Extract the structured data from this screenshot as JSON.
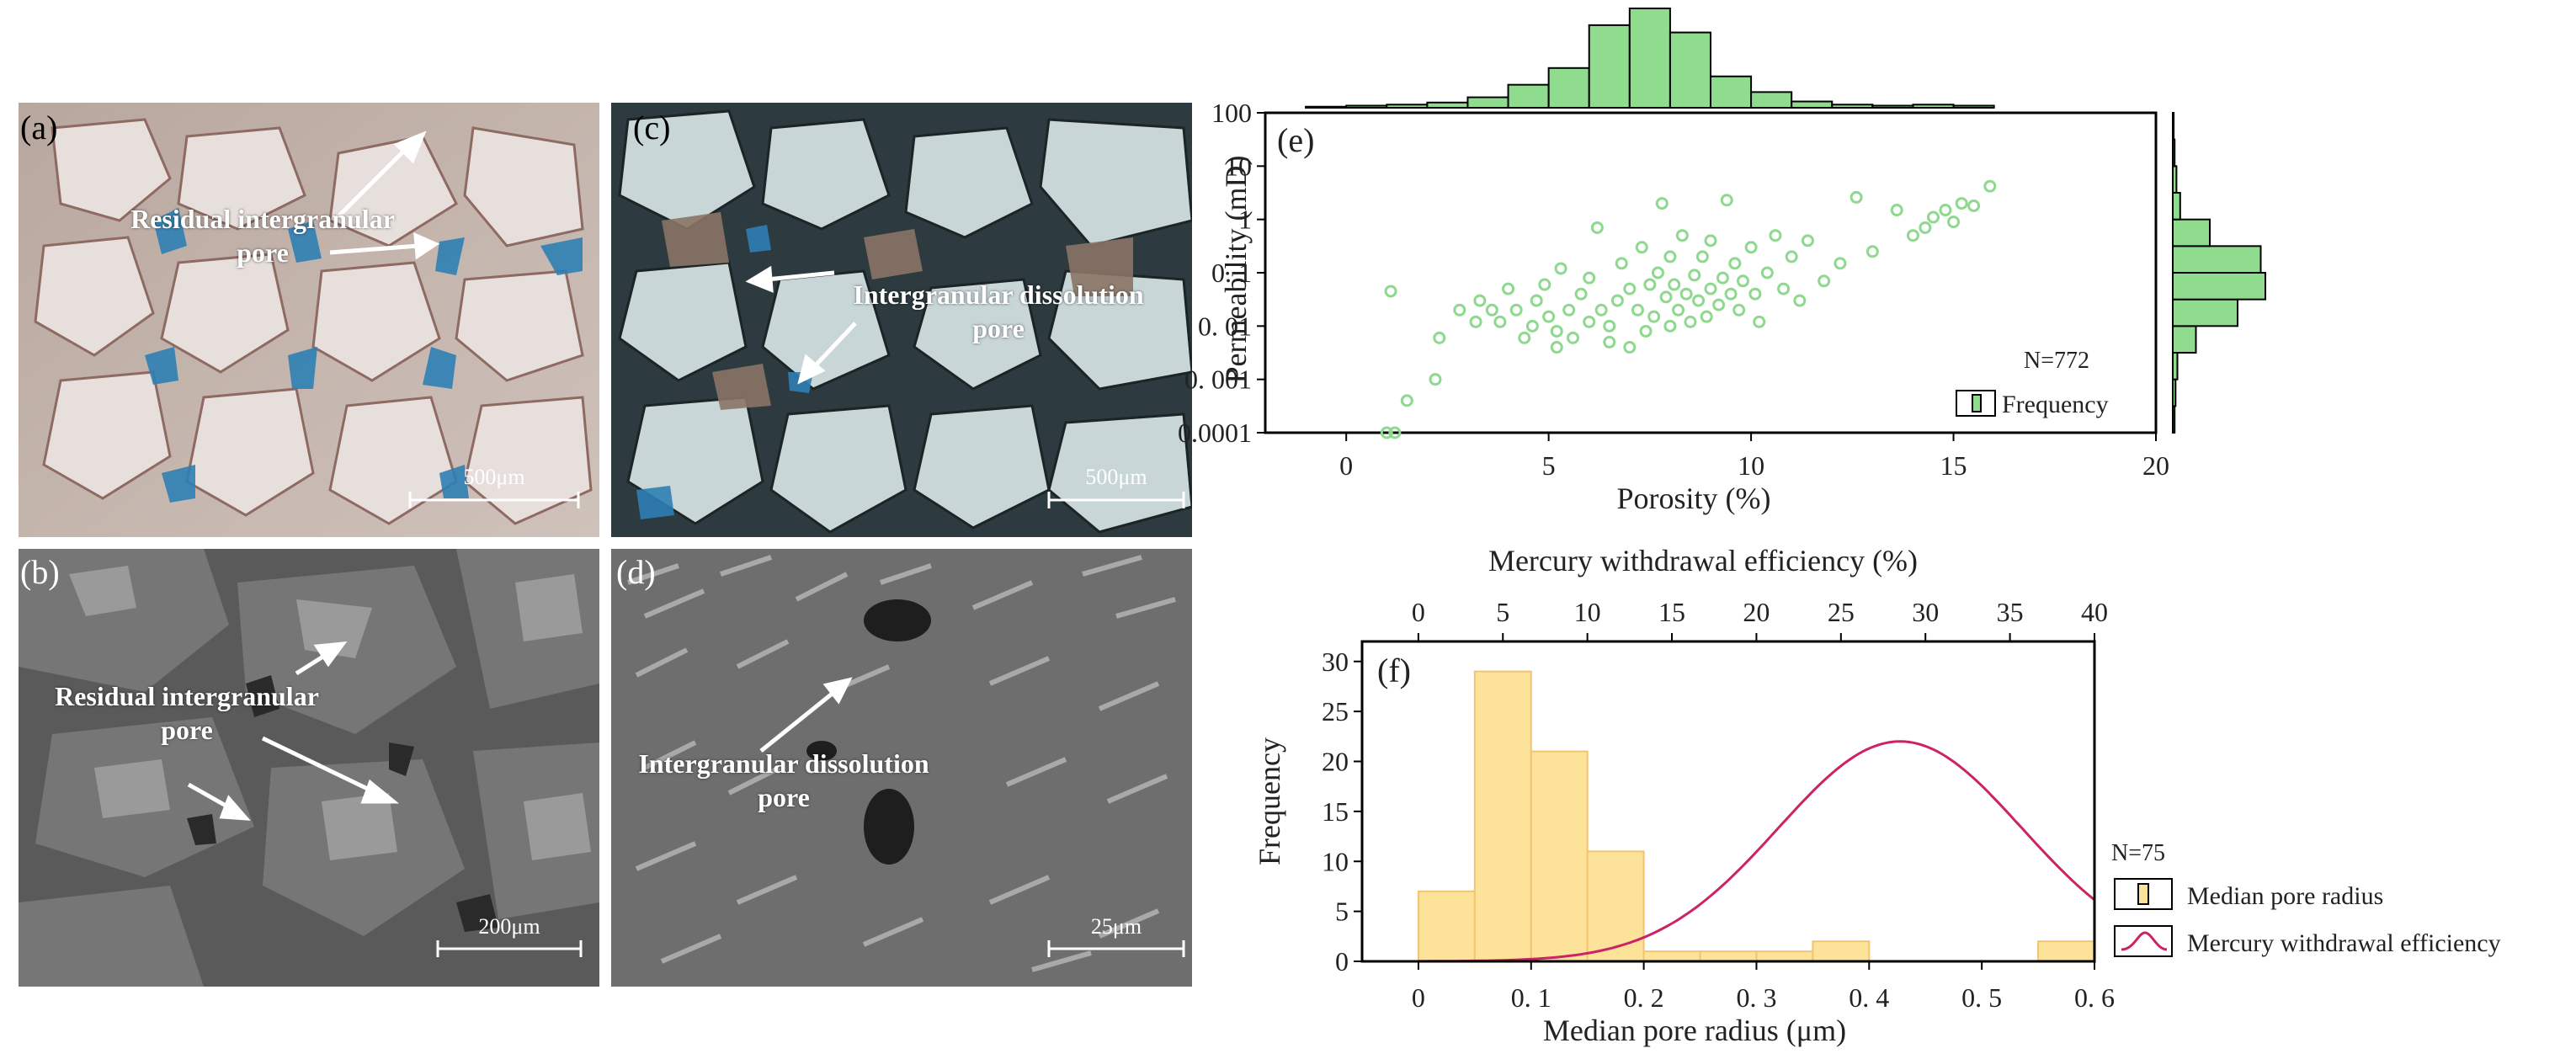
{
  "panels": {
    "a": {
      "label": "(a)",
      "annotation_lines": [
        "Residual intergranular",
        "pore"
      ],
      "scale": "500μm"
    },
    "b": {
      "label": "(b)",
      "annotation_lines": [
        "Residual intergranular",
        "pore"
      ],
      "scale": "200μm"
    },
    "c": {
      "label": "(c)",
      "annotation_lines": [
        "Intergranular dissolution",
        "pore"
      ],
      "scale": "500μm"
    },
    "d": {
      "label": "(d)",
      "annotation_lines": [
        "Intergranular dissolution",
        "pore"
      ],
      "scale": "25μm"
    }
  },
  "colors": {
    "scatter_green": "#8fd88f",
    "hist_green": "#8fdc8f",
    "hist_yellow": "#fde39a",
    "hist_yellow_edge": "#f2c472",
    "curve": "#cc2266",
    "blue_resin": "#2e7fb4"
  },
  "chart_data": [
    {
      "panel": "(e)",
      "type": "scatter",
      "xlabel": "Porosity (%)",
      "ylabel": "Permeability (mD)",
      "xlim": [
        -2,
        20
      ],
      "ylim": [
        0.0001,
        100
      ],
      "y_scale": "log",
      "x_ticks": [
        "0",
        "5",
        "10",
        "15",
        "20"
      ],
      "y_ticks": [
        "0.0001",
        "0. 001",
        "0. 01",
        "0. 1",
        "1",
        "10",
        "100"
      ],
      "n_label": "N=772",
      "legend": {
        "label": "Frequency",
        "position": "bottom-right"
      },
      "points": [
        [
          1.0,
          0.0001
        ],
        [
          1.2,
          0.0001
        ],
        [
          1.1,
          0.045
        ],
        [
          1.5,
          0.0004
        ],
        [
          2.2,
          0.001
        ],
        [
          2.3,
          0.006
        ],
        [
          2.8,
          0.02
        ],
        [
          3.2,
          0.012
        ],
        [
          3.3,
          0.03
        ],
        [
          3.6,
          0.02
        ],
        [
          3.8,
          0.012
        ],
        [
          4.0,
          0.05
        ],
        [
          4.2,
          0.02
        ],
        [
          4.4,
          0.006
        ],
        [
          4.6,
          0.01
        ],
        [
          4.7,
          0.03
        ],
        [
          4.9,
          0.06
        ],
        [
          5.0,
          0.015
        ],
        [
          5.2,
          0.004
        ],
        [
          5.2,
          0.008
        ],
        [
          5.3,
          0.12
        ],
        [
          5.5,
          0.02
        ],
        [
          5.6,
          0.006
        ],
        [
          5.8,
          0.04
        ],
        [
          6.0,
          0.012
        ],
        [
          6.0,
          0.08
        ],
        [
          6.2,
          0.7
        ],
        [
          6.3,
          0.02
        ],
        [
          6.5,
          0.01
        ],
        [
          6.5,
          0.005
        ],
        [
          6.7,
          0.03
        ],
        [
          6.8,
          0.15
        ],
        [
          7.0,
          0.004
        ],
        [
          7.0,
          0.05
        ],
        [
          7.2,
          0.02
        ],
        [
          7.3,
          0.3
        ],
        [
          7.4,
          0.008
        ],
        [
          7.5,
          0.06
        ],
        [
          7.6,
          0.015
        ],
        [
          7.7,
          0.1
        ],
        [
          7.8,
          2.0
        ],
        [
          7.9,
          0.035
        ],
        [
          8.0,
          0.01
        ],
        [
          8.0,
          0.2
        ],
        [
          8.1,
          0.06
        ],
        [
          8.2,
          0.02
        ],
        [
          8.3,
          0.5
        ],
        [
          8.4,
          0.04
        ],
        [
          8.5,
          0.012
        ],
        [
          8.6,
          0.09
        ],
        [
          8.7,
          0.03
        ],
        [
          8.8,
          0.2
        ],
        [
          8.9,
          0.015
        ],
        [
          9.0,
          0.05
        ],
        [
          9.0,
          0.4
        ],
        [
          9.2,
          0.025
        ],
        [
          9.3,
          0.08
        ],
        [
          9.4,
          2.3
        ],
        [
          9.5,
          0.04
        ],
        [
          9.6,
          0.15
        ],
        [
          9.7,
          0.02
        ],
        [
          9.8,
          0.07
        ],
        [
          10.0,
          0.3
        ],
        [
          10.1,
          0.04
        ],
        [
          10.2,
          0.012
        ],
        [
          10.4,
          0.1
        ],
        [
          10.6,
          0.5
        ],
        [
          10.8,
          0.05
        ],
        [
          11.0,
          0.2
        ],
        [
          11.2,
          0.03
        ],
        [
          11.4,
          0.4
        ],
        [
          11.8,
          0.07
        ],
        [
          12.2,
          0.15
        ],
        [
          12.6,
          2.6
        ],
        [
          13.0,
          0.25
        ],
        [
          13.6,
          1.5
        ],
        [
          14.0,
          0.5
        ],
        [
          14.3,
          0.7
        ],
        [
          14.5,
          1.1
        ],
        [
          14.8,
          1.5
        ],
        [
          15.0,
          0.9
        ],
        [
          15.2,
          2.0
        ],
        [
          15.5,
          1.8
        ],
        [
          15.9,
          4.2
        ]
      ],
      "porosity_histogram": {
        "bin_start": -1,
        "bin_width": 1,
        "counts": [
          1,
          2,
          3,
          5,
          10,
          22,
          38,
          79,
          95,
          72,
          30,
          15,
          6,
          3,
          2,
          3,
          2
        ]
      },
      "permeability_histogram": {
        "bins_log10": [
          -4,
          -3.5,
          -3,
          -2.5,
          -2,
          -1.5,
          -1,
          -0.5,
          0,
          0.5,
          1,
          1.5
        ],
        "counts": [
          2,
          3,
          5,
          25,
          70,
          100,
          95,
          40,
          8,
          4,
          2,
          1
        ]
      }
    },
    {
      "panel": "(f)",
      "type": "bar",
      "xlabel": "Median pore radius (μm)",
      "ylabel": "Frequency",
      "top_xlabel": "Mercury withdrawal efficiency (%)",
      "xlim": [
        -0.05,
        0.6
      ],
      "ylim": [
        0,
        32
      ],
      "top_xlim": [
        -3.33,
        40
      ],
      "x_ticks": [
        "0",
        "0. 1",
        "0. 2",
        "0. 3",
        "0. 4",
        "0. 5",
        "0. 6"
      ],
      "y_ticks": [
        "0",
        "5",
        "10",
        "15",
        "20",
        "25",
        "30"
      ],
      "top_x_ticks": [
        "0",
        "5",
        "10",
        "15",
        "20",
        "25",
        "30",
        "35",
        "40"
      ],
      "n_label": "N=75",
      "bins": {
        "start": 0,
        "width": 0.05,
        "counts": [
          7,
          29,
          21,
          11,
          1,
          1,
          1,
          2,
          0,
          0,
          0,
          2
        ]
      },
      "curve": {
        "name": "Mercury withdrawal efficiency",
        "mean": 28.5,
        "sd": 7.2,
        "peak": 22
      },
      "legend": [
        {
          "label": "Median pore radius",
          "kind": "bar"
        },
        {
          "label": "Mercury withdrawal efficiency",
          "kind": "line"
        }
      ]
    }
  ]
}
